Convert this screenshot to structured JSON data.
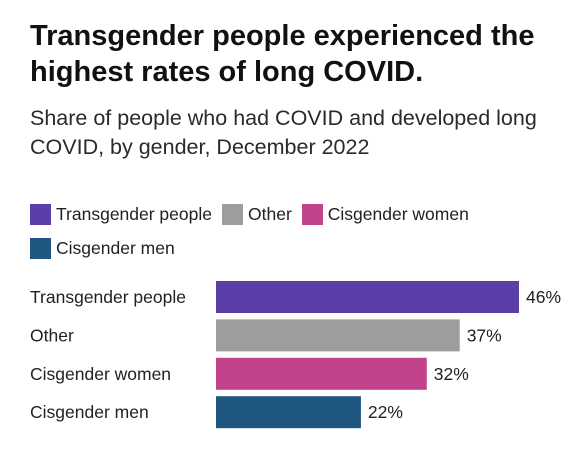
{
  "title": "Transgender people experienced the highest rates of long COVID.",
  "subtitle": "Share of people who had COVID and developed long COVID, by gender, December 2022",
  "chart_data": {
    "type": "bar",
    "orientation": "horizontal",
    "title": "Transgender people experienced the highest rates of long COVID.",
    "subtitle": "Share of people who had COVID and developed long COVID, by gender, December 2022",
    "categories": [
      "Transgender people",
      "Other",
      "Cisgender women",
      "Cisgender men"
    ],
    "values": [
      46,
      37,
      32,
      22
    ],
    "value_labels": [
      "46%",
      "37%",
      "32%",
      "22%"
    ],
    "colors": [
      "#5b3ea8",
      "#9d9d9d",
      "#c2428b",
      "#1f5680"
    ],
    "unit": "%",
    "xlim": [
      0,
      100
    ],
    "grid": false,
    "legend": {
      "placement": "top-left",
      "entries": [
        {
          "label": "Transgender people",
          "color": "#5b3ea8"
        },
        {
          "label": "Other",
          "color": "#9d9d9d"
        },
        {
          "label": "Cisgender women",
          "color": "#c2428b"
        },
        {
          "label": "Cisgender men",
          "color": "#1f5680"
        }
      ]
    }
  }
}
